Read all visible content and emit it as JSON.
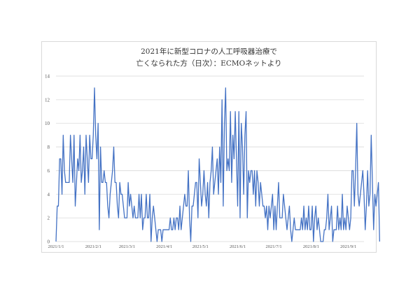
{
  "title_lines": [
    "2021年に新型コロナの人工呼吸器治療で",
    "亡くなられた方（日次）：ECMOネットより"
  ],
  "colors": {
    "line": "#4472c4",
    "grid": "#d9d9d9",
    "text": "#595959"
  },
  "chart_data": {
    "type": "line",
    "title": "2021年に新型コロナの人工呼吸器治療で亡くなられた方（日次）：ECMOネットより",
    "xlabel": "",
    "ylabel": "",
    "ylim": [
      0,
      14
    ],
    "yticks": [
      0,
      2,
      4,
      6,
      8,
      10,
      12,
      14
    ],
    "xlim": [
      "2021-01-01",
      "2021-09-14"
    ],
    "xtick_dates": [
      "2021-01-01",
      "2021-02-01",
      "2021-03-01",
      "2021-04-01",
      "2021-05-01",
      "2021-06-01",
      "2021-07-01",
      "2021-08-01",
      "2021-09-01"
    ],
    "xtick_labels": [
      "2021/1/1",
      "2021/2/1",
      "2021/3/1",
      "2021/4/1",
      "2021/5/1",
      "2021/6/1",
      "2021/7/1",
      "2021/8/1",
      "2021/9/1"
    ],
    "grid": "horizontal",
    "legend": "none",
    "start_date": "2021-01-01",
    "series": [
      {
        "values": [
          0,
          3,
          3,
          7,
          7,
          4,
          9,
          6,
          5,
          5,
          5,
          5,
          9,
          7,
          5,
          9,
          3,
          5,
          7,
          6,
          9,
          5,
          6,
          8,
          4,
          9,
          7,
          5,
          9,
          7,
          7,
          9,
          13,
          9,
          7,
          10,
          1,
          8,
          5,
          5,
          6,
          5,
          5,
          3,
          2,
          4,
          5,
          6,
          8,
          5,
          5,
          3,
          2,
          5,
          4,
          4,
          3,
          2,
          2,
          2,
          5,
          3,
          4,
          3,
          2,
          3,
          2,
          2,
          2,
          4,
          2,
          4,
          1,
          2,
          2,
          4,
          2,
          2,
          4,
          0,
          2,
          3,
          2,
          1,
          0,
          1,
          1,
          1,
          0,
          1,
          1,
          1,
          1,
          1,
          1,
          2,
          1,
          1,
          2,
          1,
          2,
          2,
          1,
          3,
          1,
          2,
          3,
          4,
          3,
          3,
          6,
          2,
          0,
          3,
          3,
          4,
          5,
          5,
          2,
          7,
          5,
          3,
          4,
          6,
          4,
          3,
          5,
          2,
          5,
          6,
          8,
          4,
          5,
          6,
          7,
          4,
          8,
          5,
          12,
          3,
          10,
          13,
          6,
          7,
          6,
          11,
          5,
          9,
          7,
          11,
          7,
          3,
          11,
          2,
          10,
          8,
          4,
          9,
          11,
          2,
          6,
          5,
          6,
          6,
          4,
          6,
          3,
          6,
          5,
          3,
          5,
          4,
          3,
          3,
          2,
          3,
          1,
          3,
          2,
          3,
          4,
          1,
          3,
          1,
          3,
          5,
          2,
          2,
          2,
          4,
          3,
          2,
          1,
          2,
          3,
          1,
          0,
          1,
          2,
          1,
          1,
          1,
          1,
          1,
          2,
          1,
          3,
          1,
          2,
          1,
          3,
          1,
          1,
          3,
          0,
          2,
          3,
          1,
          2,
          1,
          0,
          0,
          0,
          1,
          1,
          2,
          4,
          1,
          2,
          3,
          0,
          1,
          1,
          1,
          3,
          1,
          2,
          1,
          4,
          1,
          2,
          1,
          3,
          2,
          1,
          2,
          6,
          6,
          3,
          6,
          10,
          4,
          3,
          4,
          5,
          6,
          4,
          1,
          3,
          6,
          3,
          4,
          9,
          5,
          1,
          4,
          3,
          4,
          5,
          0
        ]
      }
    ]
  }
}
